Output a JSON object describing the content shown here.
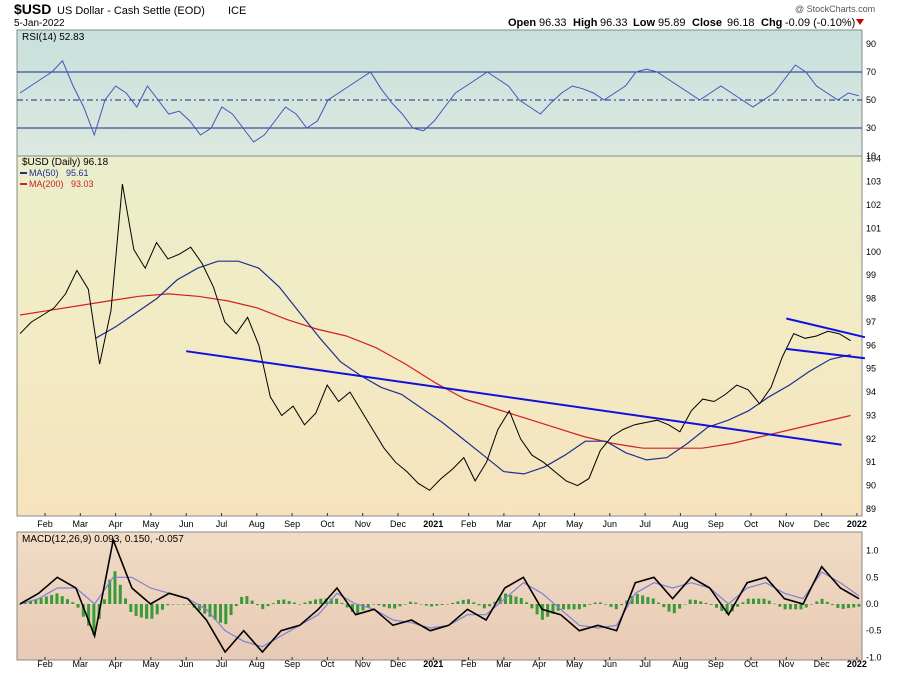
{
  "header": {
    "symbol": "$USD",
    "name": "US Dollar - Cash Settle (EOD)",
    "exchange": "ICE",
    "date": "5-Jan-2022",
    "watermark": "@ StockCharts.com",
    "open_label": "Open",
    "open": "96.33",
    "high_label": "High",
    "high": "96.33",
    "low_label": "Low",
    "low": "95.89",
    "close_label": "Close",
    "close": "96.18",
    "chg_label": "Chg",
    "chg": "-0.09 (-0.10%)"
  },
  "colors": {
    "rsi_bg": "#cfe3df",
    "price_bg_top": "#eaeecb",
    "price_bg_bottom": "#f6e3bd",
    "macd_bg": "#ecd2bd",
    "price_line": "#000000",
    "ma50": "#1f2f8f",
    "ma200": "#d42020",
    "trend": "#1010e0",
    "rsi_line": "#4455bb",
    "macd_signal": "#8080d8",
    "hist": "#3a9a3a",
    "down_arrow": "#cc0000"
  },
  "chart_data": [
    {
      "type": "line",
      "panel": "rsi",
      "legend": "RSI(14) 52.83",
      "ylim": [
        10,
        100
      ],
      "y_ticks": [
        90,
        70,
        50,
        30,
        10
      ],
      "ref_lines": [
        70,
        50,
        30
      ],
      "values": [
        55,
        60,
        65,
        70,
        78,
        60,
        45,
        25,
        50,
        60,
        55,
        45,
        60,
        50,
        40,
        42,
        35,
        25,
        30,
        45,
        40,
        30,
        20,
        25,
        35,
        45,
        40,
        30,
        35,
        50,
        55,
        60,
        65,
        70,
        58,
        48,
        40,
        30,
        28,
        35,
        45,
        55,
        60,
        65,
        70,
        65,
        60,
        50,
        45,
        40,
        48,
        55,
        60,
        58,
        55,
        50,
        55,
        60,
        70,
        72,
        70,
        65,
        60,
        55,
        50,
        55,
        60,
        55,
        50,
        45,
        50,
        55,
        65,
        75,
        70,
        60,
        55,
        50,
        55,
        53
      ]
    },
    {
      "type": "line",
      "panel": "price",
      "title": "$USD (Daily) 96.18",
      "legend": [
        {
          "name": "MA(50)",
          "value": "95.61"
        },
        {
          "name": "MA(200)",
          "value": "93.03"
        }
      ],
      "ylim": [
        88.7,
        104.1
      ],
      "y_ticks": [
        104,
        103,
        102,
        101,
        100,
        99,
        98,
        97,
        96,
        95,
        94,
        93,
        92,
        91,
        90,
        89
      ],
      "x_ticks": [
        "Feb",
        "Mar",
        "Apr",
        "May",
        "Jun",
        "Jul",
        "Aug",
        "Sep",
        "Oct",
        "Nov",
        "Dec",
        "2021",
        "Feb",
        "Mar",
        "Apr",
        "May",
        "Jun",
        "Jul",
        "Aug",
        "Sep",
        "Oct",
        "Nov",
        "Dec",
        "2022"
      ],
      "series": [
        {
          "name": "$USD",
          "values": [
            96.5,
            97.0,
            97.3,
            97.6,
            98.2,
            99.2,
            98.4,
            95.2,
            97.5,
            102.9,
            100.1,
            99.3,
            100.4,
            99.7,
            99.9,
            100.2,
            99.5,
            98.5,
            97.0,
            96.5,
            97.2,
            96.0,
            93.8,
            93.0,
            93.4,
            92.6,
            93.1,
            94.3,
            93.6,
            94.0,
            93.2,
            92.4,
            91.6,
            91.0,
            90.6,
            90.1,
            89.8,
            90.3,
            90.7,
            91.2,
            90.2,
            91.0,
            92.4,
            93.2,
            92.0,
            91.3,
            91.0,
            90.6,
            90.2,
            90.0,
            90.3,
            91.5,
            92.1,
            92.4,
            92.6,
            92.7,
            92.8,
            92.6,
            92.3,
            93.2,
            93.7,
            93.6,
            93.9,
            94.3,
            94.1,
            93.5,
            94.2,
            95.5,
            96.5,
            96.3,
            96.4,
            96.6,
            96.5,
            96.2
          ]
        },
        {
          "name": "MA(50)",
          "values": [
            96.3,
            96.8,
            97.4,
            98.0,
            98.8,
            99.3,
            99.6,
            99.6,
            99.3,
            98.5,
            97.4,
            96.3,
            95.3,
            94.7,
            94.2,
            93.9,
            93.3,
            92.7,
            92.0,
            91.3,
            90.6,
            90.5,
            90.8,
            91.3,
            91.9,
            91.9,
            91.4,
            91.1,
            91.2,
            91.8,
            92.5,
            92.8,
            93.2,
            93.8,
            94.3,
            94.9,
            95.4,
            95.6
          ]
        },
        {
          "name": "MA(200)",
          "values": [
            97.3,
            97.5,
            97.7,
            97.9,
            98.1,
            98.2,
            98.1,
            97.9,
            97.6,
            97.1,
            96.7,
            96.4,
            95.9,
            95.2,
            94.4,
            93.7,
            93.3,
            92.9,
            92.5,
            92.1,
            91.8,
            91.6,
            91.6,
            91.6,
            91.8,
            92.1,
            92.4,
            92.7,
            93.0
          ]
        }
      ],
      "trendlines": [
        {
          "from": [
            "2020-06",
            95.75
          ],
          "to": [
            "2021-12",
            91.75
          ]
        },
        {
          "from": [
            "2021-11",
            97.15
          ],
          "to": [
            "2022-01",
            96.35
          ]
        },
        {
          "from": [
            "2021-11",
            95.85
          ],
          "to": [
            "2022-01",
            95.45
          ]
        }
      ]
    },
    {
      "type": "line",
      "panel": "macd",
      "legend": "MACD(12,26,9) 0.093, 0.150, -0.057",
      "ylim": [
        -1.05,
        1.35
      ],
      "y_ticks": [
        1.0,
        0.5,
        0.0,
        -0.5,
        -1.0
      ],
      "y_tick_labels": [
        "1.0",
        "0.5",
        "0.0",
        "-0.5",
        "-1.0"
      ],
      "x_ticks": [
        "Feb",
        "Mar",
        "Apr",
        "May",
        "Jun",
        "Jul",
        "Aug",
        "Sep",
        "Oct",
        "Nov",
        "Dec",
        "2021",
        "Feb",
        "Mar",
        "Apr",
        "May",
        "Jun",
        "Jul",
        "Aug",
        "Sep",
        "Oct",
        "Nov",
        "Dec",
        "2022"
      ],
      "series": [
        {
          "name": "MACD",
          "values": [
            0.0,
            0.2,
            0.5,
            0.3,
            -0.6,
            1.2,
            0.3,
            0.0,
            0.2,
            0.1,
            -0.3,
            -0.9,
            -0.5,
            -0.9,
            -0.5,
            -0.4,
            -0.1,
            0.3,
            -0.2,
            -0.1,
            -0.4,
            -0.3,
            -0.5,
            -0.4,
            -0.1,
            -0.3,
            0.3,
            0.5,
            -0.1,
            -0.2,
            -0.5,
            -0.4,
            -0.5,
            0.4,
            0.5,
            0.1,
            0.5,
            0.3,
            -0.2,
            0.4,
            0.5,
            0.1,
            0.0,
            0.7,
            0.3,
            0.1
          ]
        },
        {
          "name": "Signal",
          "values": [
            0.0,
            0.1,
            0.3,
            0.3,
            0.0,
            0.5,
            0.5,
            0.3,
            0.2,
            0.1,
            -0.1,
            -0.5,
            -0.7,
            -0.8,
            -0.6,
            -0.4,
            -0.2,
            0.2,
            0.0,
            -0.1,
            -0.3,
            -0.35,
            -0.45,
            -0.4,
            -0.2,
            -0.2,
            0.1,
            0.4,
            0.2,
            -0.1,
            -0.4,
            -0.45,
            -0.4,
            0.2,
            0.4,
            0.3,
            0.4,
            0.3,
            0.0,
            0.3,
            0.4,
            0.2,
            0.1,
            0.6,
            0.4,
            0.15
          ]
        }
      ]
    }
  ]
}
